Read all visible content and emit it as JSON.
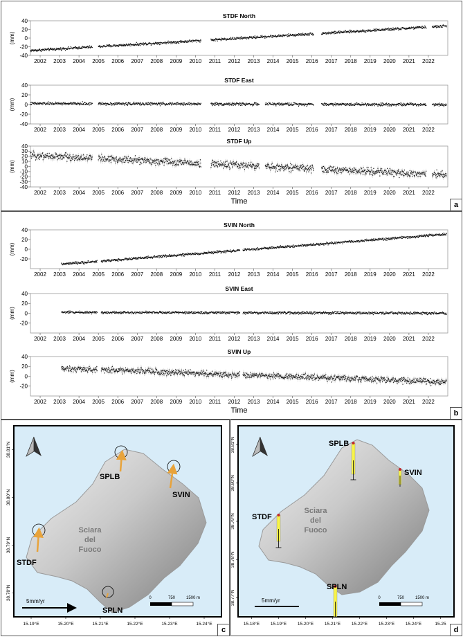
{
  "panels": {
    "a_letter": "a",
    "b_letter": "b",
    "c_letter": "c",
    "d_letter": "d"
  },
  "time_label": "Time",
  "chart_data": [
    {
      "type": "scatter",
      "panel": "a",
      "title": "STDF North",
      "ylabel": "(mm)",
      "ylim": [
        -40,
        40
      ],
      "yticks": [
        40,
        20,
        0,
        -20,
        -40
      ],
      "xlim": [
        2001.5,
        2023.0
      ],
      "xticks": [
        "2002",
        "2003",
        "2004",
        "2005",
        "2006",
        "2007",
        "2008",
        "2009",
        "2010",
        "2011",
        "2012",
        "2013",
        "2014",
        "2015",
        "2016",
        "2017",
        "2018",
        "2019",
        "2020",
        "2021",
        "2022"
      ],
      "segments": [
        [
          2001.5,
          2004.7
        ],
        [
          2005.0,
          2010.3
        ],
        [
          2010.8,
          2016.1
        ],
        [
          2016.5,
          2021.9
        ],
        [
          2022.2,
          2022.95
        ]
      ],
      "trend": {
        "x": [
          2001.5,
          2022.95
        ],
        "y": [
          -29,
          28
        ]
      },
      "noise": 3
    },
    {
      "type": "scatter",
      "panel": "a",
      "title": "STDF East",
      "ylabel": "(mm)",
      "ylim": [
        -40,
        40
      ],
      "yticks": [
        40,
        20,
        0,
        -20,
        -40
      ],
      "xlim": [
        2001.5,
        2023.0
      ],
      "xticks": [
        "2002",
        "2003",
        "2004",
        "2005",
        "2006",
        "2007",
        "2008",
        "2009",
        "2010",
        "2011",
        "2012",
        "2013",
        "2014",
        "2015",
        "2016",
        "2017",
        "2018",
        "2019",
        "2020",
        "2021",
        "2022"
      ],
      "segments": [
        [
          2001.5,
          2004.7
        ],
        [
          2005.0,
          2010.3
        ],
        [
          2010.8,
          2013.3
        ],
        [
          2013.6,
          2016.1
        ],
        [
          2016.5,
          2021.9
        ],
        [
          2022.2,
          2022.95
        ]
      ],
      "trend": {
        "x": [
          2001.5,
          2022.95
        ],
        "y": [
          2,
          0
        ]
      },
      "noise": 3
    },
    {
      "type": "scatter",
      "panel": "a",
      "title": "STDF Up",
      "ylabel": "(mm)",
      "ylim": [
        -40,
        40
      ],
      "yticks": [
        40,
        30,
        20,
        10,
        0,
        -10,
        -20,
        -30,
        -40
      ],
      "xlim": [
        2001.5,
        2023.0
      ],
      "xticks": [
        "2002",
        "2003",
        "2004",
        "2005",
        "2006",
        "2007",
        "2008",
        "2009",
        "2010",
        "2011",
        "2012",
        "2013",
        "2014",
        "2015",
        "2016",
        "2017",
        "2018",
        "2019",
        "2020",
        "2021",
        "2022"
      ],
      "segments": [
        [
          2001.5,
          2004.7
        ],
        [
          2005.0,
          2010.3
        ],
        [
          2010.8,
          2013.3
        ],
        [
          2013.6,
          2016.1
        ],
        [
          2016.5,
          2021.9
        ],
        [
          2022.2,
          2022.95
        ]
      ],
      "trend": {
        "x": [
          2001.5,
          2022.95
        ],
        "y": [
          22,
          -17
        ]
      },
      "noise": 7,
      "xlabel": "Time"
    },
    {
      "type": "scatter",
      "panel": "b",
      "title": "SVIN North",
      "ylabel": "(mm)",
      "ylim": [
        -40,
        40
      ],
      "yticks": [
        40,
        20,
        0,
        -20
      ],
      "xlim": [
        2001.5,
        2023.0
      ],
      "xticks": [
        "2002",
        "2003",
        "2004",
        "2005",
        "2006",
        "2007",
        "2008",
        "2009",
        "2010",
        "2011",
        "2012",
        "2013",
        "2014",
        "2015",
        "2016",
        "2017",
        "2018",
        "2019",
        "2020",
        "2021",
        "2022"
      ],
      "segments": [
        [
          2003.1,
          2004.95
        ],
        [
          2005.15,
          2012.3
        ],
        [
          2012.45,
          2022.95
        ]
      ],
      "trend": {
        "x": [
          2003.1,
          2022.95
        ],
        "y": [
          -31,
          31
        ]
      },
      "noise": 2.5
    },
    {
      "type": "scatter",
      "panel": "b",
      "title": "SVIN East",
      "ylabel": "(mm)",
      "ylim": [
        -40,
        40
      ],
      "yticks": [
        40,
        20,
        0,
        -20
      ],
      "xlim": [
        2001.5,
        2023.0
      ],
      "xticks": [
        "2002",
        "2003",
        "2004",
        "2005",
        "2006",
        "2007",
        "2008",
        "2009",
        "2010",
        "2011",
        "2012",
        "2013",
        "2014",
        "2015",
        "2016",
        "2017",
        "2018",
        "2019",
        "2020",
        "2021",
        "2022"
      ],
      "segments": [
        [
          2003.1,
          2004.95
        ],
        [
          2005.15,
          2012.3
        ],
        [
          2012.45,
          2022.95
        ]
      ],
      "trend": {
        "x": [
          2003.1,
          2022.95
        ],
        "y": [
          2,
          0
        ]
      },
      "noise": 2.5
    },
    {
      "type": "scatter",
      "panel": "b",
      "title": "SVIN Up",
      "ylabel": "(mm)",
      "ylim": [
        -40,
        40
      ],
      "yticks": [
        40,
        20,
        0,
        -20
      ],
      "xlim": [
        2001.5,
        2023.0
      ],
      "xticks": [
        "2002",
        "2003",
        "2004",
        "2005",
        "2006",
        "2007",
        "2008",
        "2009",
        "2010",
        "2011",
        "2012",
        "2013",
        "2014",
        "2015",
        "2016",
        "2017",
        "2018",
        "2019",
        "2020",
        "2021",
        "2022"
      ],
      "segments": [
        [
          2003.1,
          2004.95
        ],
        [
          2005.15,
          2012.3
        ],
        [
          2012.45,
          2022.95
        ]
      ],
      "trend": {
        "x": [
          2003.1,
          2022.95
        ],
        "y": [
          16,
          -12
        ]
      },
      "noise": 6,
      "xlabel": "Time"
    }
  ],
  "maps": {
    "c": {
      "xticks": [
        "15.19°E",
        "15.20°E",
        "15.21°E",
        "15.22°E",
        "15.23°E",
        "15.24°E"
      ],
      "yticks": [
        "38.81°N",
        "38.80°N",
        "38.79°N",
        "38.78°N"
      ],
      "area_label": [
        "Sciara",
        "del",
        "Fuoco"
      ],
      "stations": [
        "SPLB",
        "SVIN",
        "STDF",
        "SPLN"
      ],
      "velocity_scale": "5mm/yr",
      "distance_scale": [
        "0",
        "750",
        "1500 m"
      ]
    },
    "d": {
      "xticks": [
        "15.18°E",
        "15.19°E",
        "15.20°E",
        "15.21°E",
        "15.22°E",
        "15.23°E",
        "15.24°E",
        "15.25"
      ],
      "yticks": [
        "38.81°N",
        "38.80°N",
        "38.79°N",
        "38.78°N",
        "38.77°N"
      ],
      "area_label": [
        "Sciara",
        "del",
        "Fuoco"
      ],
      "stations": [
        "SPLB",
        "SVIN",
        "STDF",
        "SPLN"
      ],
      "velocity_scale": "5mm/yr",
      "distance_scale": [
        "0",
        "750",
        "1500 m"
      ]
    }
  }
}
